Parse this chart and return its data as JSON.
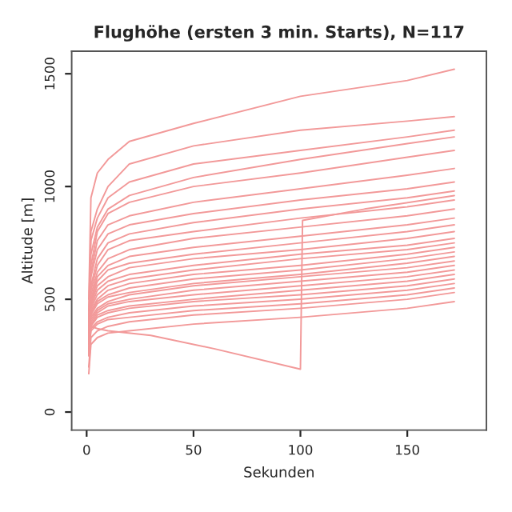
{
  "chart_data": {
    "type": "line",
    "title": "Flughöhe (ersten 3 min. Starts), N=117",
    "xlabel": "Sekunden",
    "ylabel": "Altitude [m]",
    "x": [
      1,
      2,
      5,
      10,
      20,
      50,
      100,
      150,
      172
    ],
    "xlim": [
      -7,
      187
    ],
    "ylim": [
      -80,
      1600
    ],
    "xticks": [
      0,
      50,
      100,
      150
    ],
    "yticks": [
      0,
      500,
      1000,
      1500
    ],
    "grid": false,
    "legend": false,
    "line_style": "solid",
    "series": [
      {
        "color": "#f29999",
        "values": [
          500,
          950,
          1060,
          1120,
          1200,
          1280,
          1400,
          1470,
          1520
        ]
      },
      {
        "color": "#f29999",
        "values": [
          450,
          800,
          900,
          1000,
          1100,
          1180,
          1250,
          1290,
          1310
        ]
      },
      {
        "color": "#f29999",
        "values": [
          420,
          760,
          860,
          950,
          1020,
          1100,
          1160,
          1220,
          1250
        ]
      },
      {
        "color": "#f29999",
        "values": [
          400,
          700,
          820,
          900,
          960,
          1040,
          1120,
          1190,
          1220
        ]
      },
      {
        "color": "#f29999",
        "values": [
          380,
          650,
          800,
          880,
          930,
          1000,
          1060,
          1130,
          1160
        ]
      },
      {
        "color": "#f29999",
        "values": [
          400,
          620,
          760,
          830,
          870,
          930,
          990,
          1050,
          1080
        ]
      },
      {
        "color": "#f29999",
        "values": [
          380,
          600,
          720,
          790,
          830,
          880,
          940,
          990,
          1020
        ]
      },
      {
        "color": "#f29999",
        "values": [
          370,
          560,
          680,
          750,
          790,
          840,
          900,
          950,
          980
        ]
      },
      {
        "color": "#f29999",
        "values": [
          360,
          540,
          650,
          720,
          760,
          800,
          860,
          910,
          940
        ]
      },
      {
        "color": "#f29999",
        "values": [
          350,
          520,
          620,
          680,
          720,
          770,
          820,
          870,
          900
        ]
      },
      {
        "color": "#f29999",
        "values": [
          340,
          500,
          600,
          650,
          690,
          730,
          780,
          830,
          860
        ]
      },
      {
        "color": "#f29999",
        "values": [
          360,
          490,
          580,
          630,
          660,
          700,
          750,
          800,
          830
        ]
      },
      {
        "color": "#f29999",
        "values": [
          330,
          480,
          560,
          600,
          640,
          680,
          720,
          770,
          800
        ]
      },
      {
        "color": "#f29999",
        "values": [
          320,
          470,
          540,
          580,
          610,
          650,
          700,
          740,
          770
        ]
      },
      {
        "color": "#f29999",
        "values": [
          340,
          460,
          520,
          560,
          590,
          630,
          680,
          720,
          750
        ]
      },
      {
        "color": "#f29999",
        "values": [
          330,
          450,
          500,
          540,
          570,
          610,
          650,
          700,
          730
        ]
      },
      {
        "color": "#f29999",
        "values": [
          310,
          440,
          490,
          520,
          550,
          590,
          630,
          680,
          710
        ]
      },
      {
        "color": "#f29999",
        "values": [
          300,
          430,
          480,
          510,
          530,
          570,
          610,
          660,
          690
        ]
      },
      {
        "color": "#f29999",
        "values": [
          320,
          420,
          460,
          490,
          520,
          560,
          600,
          640,
          670
        ]
      },
      {
        "color": "#f29999",
        "values": [
          300,
          410,
          450,
          480,
          500,
          540,
          580,
          620,
          650
        ]
      },
      {
        "color": "#f29999",
        "values": [
          290,
          400,
          440,
          470,
          490,
          520,
          560,
          600,
          630
        ]
      },
      {
        "color": "#f29999",
        "values": [
          280,
          390,
          430,
          450,
          470,
          500,
          540,
          580,
          610
        ]
      },
      {
        "color": "#f29999",
        "values": [
          270,
          380,
          420,
          440,
          460,
          490,
          520,
          560,
          590
        ]
      },
      {
        "color": "#f29999",
        "values": [
          260,
          370,
          400,
          420,
          440,
          470,
          500,
          540,
          570
        ]
      },
      {
        "color": "#f29999",
        "values": [
          250,
          360,
          390,
          410,
          420,
          450,
          480,
          520,
          550
        ]
      },
      {
        "color": "#f29999",
        "values": [
          200,
          330,
          360,
          380,
          400,
          430,
          460,
          500,
          530
        ]
      },
      {
        "color": "#f29999",
        "values": [
          170,
          300,
          330,
          350,
          360,
          390,
          420,
          460,
          490
        ]
      },
      {
        "color": "#f29999",
        "x": [
          1,
          2,
          5,
          10,
          30,
          60,
          100,
          101,
          130,
          172
        ],
        "values": [
          250,
          380,
          370,
          360,
          340,
          280,
          190,
          850,
          900,
          960
        ]
      }
    ]
  }
}
